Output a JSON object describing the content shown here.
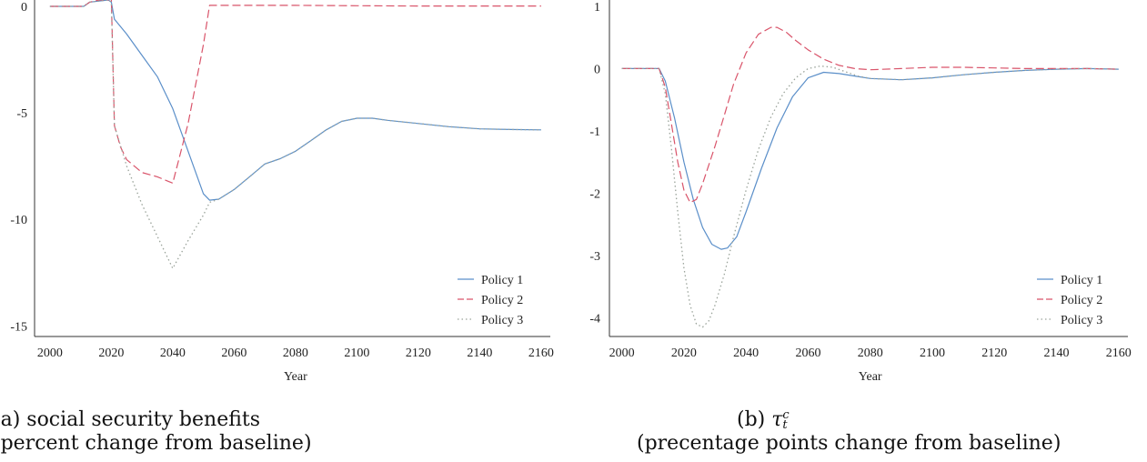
{
  "colors": {
    "policy1": "#5b8fc9",
    "policy2": "#d9546a",
    "policy3": "#9aa39a",
    "axis": "#333333"
  },
  "captions": {
    "a": {
      "line1": "(a) social security benefits",
      "line2": "(percent change from baseline)"
    },
    "b": {
      "label": "(b)",
      "tau": "τ",
      "sup": "c",
      "sub": "t",
      "line2": "(precentage points change from baseline)"
    }
  },
  "chart_data": [
    {
      "type": "line",
      "xlabel": "Year",
      "ylabel": "",
      "xlim": [
        1995,
        2163
      ],
      "ylim": [
        -15.5,
        0.3
      ],
      "xticks": [
        2000,
        2020,
        2040,
        2060,
        2080,
        2100,
        2120,
        2140,
        2160
      ],
      "yticks": [
        0,
        -5,
        -10,
        -15
      ],
      "legend": "bottom-right",
      "grid": false,
      "series": [
        {
          "name": "Policy 1",
          "style": "solid",
          "x": [
            2000,
            2011,
            2013,
            2016,
            2019,
            2020,
            2021,
            2025,
            2030,
            2035,
            2040,
            2045,
            2050,
            2052,
            2055,
            2060,
            2065,
            2070,
            2075,
            2080,
            2085,
            2090,
            2095,
            2100,
            2105,
            2110,
            2120,
            2130,
            2140,
            2150,
            2160
          ],
          "y": [
            0,
            0,
            0.2,
            0.25,
            0.3,
            0.2,
            -0.6,
            -1.3,
            -2.3,
            -3.3,
            -4.8,
            -6.8,
            -8.8,
            -9.1,
            -9.05,
            -8.6,
            -8.0,
            -7.4,
            -7.15,
            -6.8,
            -6.3,
            -5.8,
            -5.4,
            -5.25,
            -5.25,
            -5.35,
            -5.5,
            -5.65,
            -5.75,
            -5.78,
            -5.8
          ]
        },
        {
          "name": "Policy 2",
          "style": "dashed",
          "x": [
            2000,
            2011,
            2013,
            2016,
            2019,
            2020,
            2021,
            2023,
            2025,
            2030,
            2035,
            2040,
            2045,
            2050,
            2052,
            2055,
            2060,
            2080,
            2100,
            2120,
            2140,
            2160
          ],
          "y": [
            0,
            0,
            0.2,
            0.3,
            0.3,
            0.4,
            -5.6,
            -6.6,
            -7.2,
            -7.8,
            -8.0,
            -8.3,
            -5.5,
            -1.8,
            0.05,
            0.05,
            0.05,
            0.05,
            0.03,
            0.02,
            0.02,
            0.02
          ]
        },
        {
          "name": "Policy 3",
          "style": "dotted",
          "x": [
            2000,
            2011,
            2013,
            2016,
            2019,
            2020,
            2021,
            2025,
            2030,
            2035,
            2040,
            2045,
            2050,
            2052,
            2055,
            2060,
            2065,
            2070,
            2075,
            2080,
            2085,
            2090,
            2095,
            2100,
            2105,
            2110,
            2120,
            2130,
            2140,
            2150,
            2160
          ],
          "y": [
            0,
            0,
            0.2,
            0.25,
            0.3,
            0.2,
            -5.6,
            -7.5,
            -9.3,
            -10.8,
            -12.3,
            -11.0,
            -9.8,
            -9.2,
            -9.05,
            -8.6,
            -8.0,
            -7.4,
            -7.15,
            -6.8,
            -6.3,
            -5.8,
            -5.4,
            -5.25,
            -5.25,
            -5.35,
            -5.5,
            -5.65,
            -5.75,
            -5.78,
            -5.8
          ]
        }
      ]
    },
    {
      "type": "line",
      "xlabel": "Year",
      "ylabel": "",
      "xlim": [
        1996,
        2163
      ],
      "ylim": [
        -4.3,
        1.1
      ],
      "xticks": [
        2000,
        2020,
        2040,
        2060,
        2080,
        2100,
        2120,
        2140,
        2160
      ],
      "yticks": [
        1,
        0,
        -1,
        -2,
        -3,
        -4
      ],
      "legend": "bottom-right",
      "grid": false,
      "series": [
        {
          "name": "Policy 1",
          "style": "solid",
          "x": [
            2000,
            2012,
            2014,
            2017,
            2020,
            2023,
            2026,
            2029,
            2032,
            2034,
            2037,
            2040,
            2045,
            2050,
            2055,
            2060,
            2065,
            2070,
            2075,
            2080,
            2090,
            2100,
            2110,
            2120,
            2130,
            2140,
            2150,
            2160
          ],
          "y": [
            0,
            0,
            -0.2,
            -0.8,
            -1.5,
            -2.1,
            -2.55,
            -2.82,
            -2.9,
            -2.88,
            -2.7,
            -2.3,
            -1.6,
            -0.95,
            -0.45,
            -0.15,
            -0.06,
            -0.08,
            -0.12,
            -0.16,
            -0.18,
            -0.15,
            -0.1,
            -0.06,
            -0.03,
            -0.01,
            0.0,
            -0.01
          ]
        },
        {
          "name": "Policy 2",
          "style": "dashed",
          "x": [
            2000,
            2012,
            2014,
            2016,
            2018,
            2020,
            2022,
            2024,
            2026,
            2028,
            2030,
            2033,
            2036,
            2040,
            2044,
            2048,
            2050,
            2053,
            2056,
            2060,
            2065,
            2070,
            2075,
            2080,
            2090,
            2100,
            2110,
            2120,
            2130,
            2140,
            2150,
            2160
          ],
          "y": [
            0,
            0,
            -0.3,
            -0.9,
            -1.5,
            -1.95,
            -2.15,
            -2.1,
            -1.85,
            -1.55,
            -1.25,
            -0.75,
            -0.25,
            0.25,
            0.55,
            0.66,
            0.66,
            0.58,
            0.45,
            0.3,
            0.15,
            0.05,
            0.0,
            -0.02,
            0.0,
            0.02,
            0.02,
            0.01,
            0.0,
            0.0,
            0.0,
            -0.01
          ]
        },
        {
          "name": "Policy 3",
          "style": "dotted",
          "x": [
            2000,
            2012,
            2014,
            2016,
            2018,
            2020,
            2022,
            2024,
            2026,
            2028,
            2030,
            2033,
            2036,
            2040,
            2044,
            2048,
            2052,
            2056,
            2060,
            2064,
            2068,
            2072,
            2076,
            2080,
            2090,
            2100,
            2110,
            2120,
            2130,
            2140,
            2150,
            2160
          ],
          "y": [
            0,
            0,
            -0.4,
            -1.3,
            -2.3,
            -3.2,
            -3.8,
            -4.1,
            -4.15,
            -4.05,
            -3.8,
            -3.3,
            -2.7,
            -1.95,
            -1.3,
            -0.78,
            -0.4,
            -0.15,
            0.0,
            0.04,
            0.02,
            -0.05,
            -0.12,
            -0.16,
            -0.18,
            -0.15,
            -0.1,
            -0.06,
            -0.03,
            -0.01,
            0.0,
            -0.01
          ]
        }
      ]
    }
  ]
}
